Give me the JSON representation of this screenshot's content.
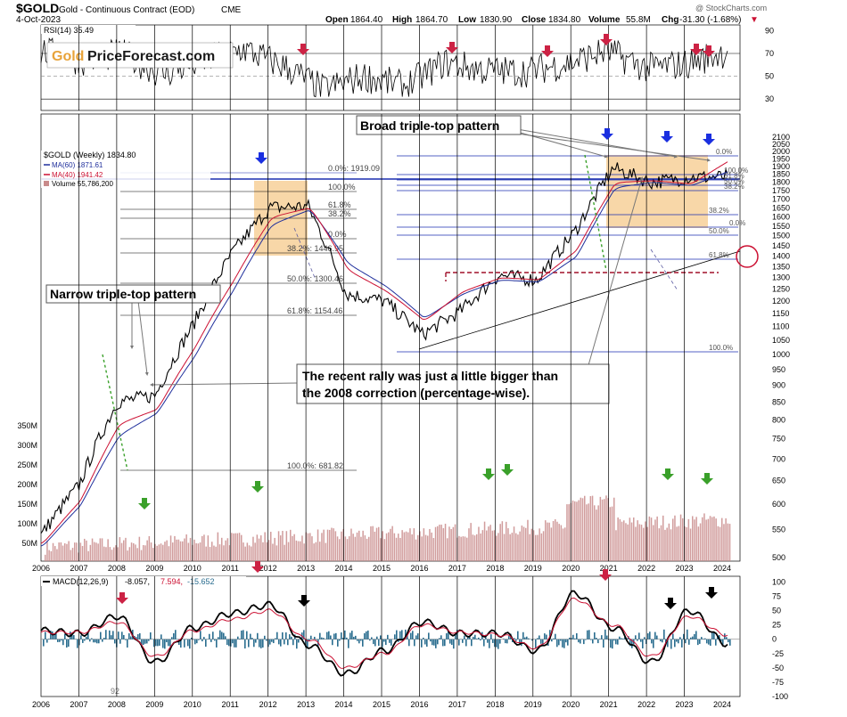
{
  "header": {
    "symbol": "$GOLD",
    "name": "Gold - Continuous Contract (EOD)",
    "exchange": "CME",
    "date": "4-Oct-2023",
    "open_label": "Open",
    "open": "1864.40",
    "high_label": "High",
    "high": "1864.70",
    "low_label": "Low",
    "low": "1830.90",
    "close_label": "Close",
    "close": "1834.80",
    "volume_label": "Volume",
    "volume": "55.8M",
    "chg_label": "Chg",
    "chg": "-31.30 (-1.68%)",
    "credit": "@ StockCharts.com"
  },
  "logo": {
    "part1": "Gold",
    "part2": "PriceForecast.com"
  },
  "legend": {
    "rsi": "RSI(14) 35.49",
    "price": "$GOLD (Weekly) 1834.80",
    "ma60": "MA(60) 1871.61",
    "ma40": "MA(40) 1941.42",
    "volume": "Volume 55,786,200",
    "macd_name": "MACD(12,26,9)",
    "macd_v1": "-8.057,",
    "macd_v2": "7.594,",
    "macd_v3": "-15.652"
  },
  "annotations": {
    "broad": "Broad triple-top pattern",
    "narrow": "Narrow triple-top pattern",
    "recent_line1": "The recent rally was just a little bigger than",
    "recent_line2": "the 2008 correction (percentage-wise).",
    "fib_2011": [
      "0.0%: 1919.09",
      "100.0%",
      "61.8%",
      "38.2%",
      "0.0%",
      "38.2%: 1446.95",
      "50.0%: 1300.46",
      "61.8%: 1154.46"
    ],
    "fib_2008": "100.0%: 681.82",
    "fib_2020": [
      "0.0%",
      "100.0%",
      "61.8%",
      "50.0%",
      "38.2%",
      "38.2%",
      "0.0%",
      "50.0%",
      "61.8%",
      "100.0%"
    ],
    "macd_small": "92"
  },
  "colors": {
    "price": "#000000",
    "ma60": "#1f2f9c",
    "ma40": "#cc1133",
    "volume": "#c98b8b",
    "macd_hist": "#2a6d8f",
    "fib": "#1b2fb0",
    "box": "#f5c98b",
    "arrow_red": "#cc2244",
    "arrow_blue": "#1a2fe0",
    "arrow_green": "#3aa02a",
    "arrow_black": "#000000"
  },
  "chart_data": [
    {
      "type": "line",
      "panel": "RSI",
      "title": "RSI(14)",
      "ylim": [
        20,
        95
      ],
      "yticks": [
        30,
        50,
        70,
        90
      ],
      "x": [
        "2006",
        "2007",
        "2008",
        "2009",
        "2010",
        "2011",
        "2012",
        "2013",
        "2014",
        "2015",
        "2016",
        "2017",
        "2018",
        "2019",
        "2020",
        "2021",
        "2022",
        "2023"
      ],
      "series": [
        {
          "name": "RSI(14)",
          "values": [
            72,
            64,
            70,
            52,
            63,
            74,
            59,
            38,
            50,
            41,
            62,
            55,
            54,
            61,
            72,
            57,
            61,
            72
          ]
        }
      ]
    },
    {
      "type": "line",
      "panel": "Price",
      "title": "$GOLD (Weekly)",
      "ylim": [
        500,
        2150
      ],
      "yticks": [
        500,
        550,
        600,
        650,
        700,
        750,
        800,
        850,
        900,
        950,
        1000,
        1050,
        1100,
        1150,
        1200,
        1250,
        1300,
        1350,
        1400,
        1450,
        1500,
        1550,
        1600,
        1650,
        1700,
        1750,
        1800,
        1850,
        1900,
        1950,
        2000,
        2050,
        2100
      ],
      "x": [
        "2006",
        "2007",
        "2008",
        "2009",
        "2010",
        "2011",
        "2012",
        "2013",
        "2014",
        "2015",
        "2016",
        "2017",
        "2018",
        "2019",
        "2020",
        "2021",
        "2022",
        "2023",
        "2023.75"
      ],
      "x_tick_labels": [
        "2006",
        "2007",
        "2008",
        "2009",
        "2010",
        "2011",
        "2012",
        "2013",
        "2014",
        "2015",
        "2016",
        "2017",
        "2018",
        "2019",
        "2020",
        "2021",
        "2022",
        "2023",
        "2024"
      ],
      "series": [
        {
          "name": "$GOLD",
          "values": [
            540,
            640,
            850,
            870,
            1110,
            1410,
            1650,
            1660,
            1230,
            1200,
            1070,
            1160,
            1310,
            1290,
            1520,
            1890,
            1800,
            1830,
            1835
          ]
        },
        {
          "name": "MA(60)",
          "values": [
            520,
            600,
            760,
            820,
            1000,
            1250,
            1560,
            1640,
            1360,
            1260,
            1130,
            1230,
            1290,
            1280,
            1400,
            1770,
            1800,
            1780,
            1872
          ]
        },
        {
          "name": "MA(40)",
          "values": [
            525,
            610,
            790,
            830,
            1030,
            1290,
            1600,
            1650,
            1330,
            1240,
            1120,
            1240,
            1300,
            1290,
            1430,
            1800,
            1810,
            1790,
            1941
          ]
        }
      ],
      "volume_axis": {
        "label": "Volume",
        "ticks": [
          "50M",
          "100M",
          "150M",
          "200M",
          "250M",
          "300M",
          "350M"
        ]
      }
    },
    {
      "type": "line",
      "panel": "MACD",
      "title": "MACD(12,26,9)",
      "ylim": [
        -100,
        110
      ],
      "yticks": [
        -100,
        -75,
        -50,
        -25,
        0,
        25,
        50,
        75,
        100
      ],
      "x": [
        "2006",
        "2007",
        "2008",
        "2009",
        "2010",
        "2011",
        "2012",
        "2013",
        "2014",
        "2015",
        "2016",
        "2017",
        "2018",
        "2019",
        "2020",
        "2021",
        "2022",
        "2023",
        "2024"
      ],
      "series": [
        {
          "name": "MACD",
          "values": [
            15,
            10,
            40,
            -40,
            20,
            45,
            60,
            -10,
            -60,
            -20,
            30,
            10,
            10,
            -20,
            80,
            20,
            -40,
            50,
            -8
          ]
        },
        {
          "name": "Signal",
          "values": [
            12,
            12,
            30,
            -30,
            15,
            35,
            50,
            0,
            -50,
            -25,
            25,
            12,
            8,
            -15,
            70,
            25,
            -30,
            40,
            7.6
          ]
        }
      ]
    }
  ]
}
